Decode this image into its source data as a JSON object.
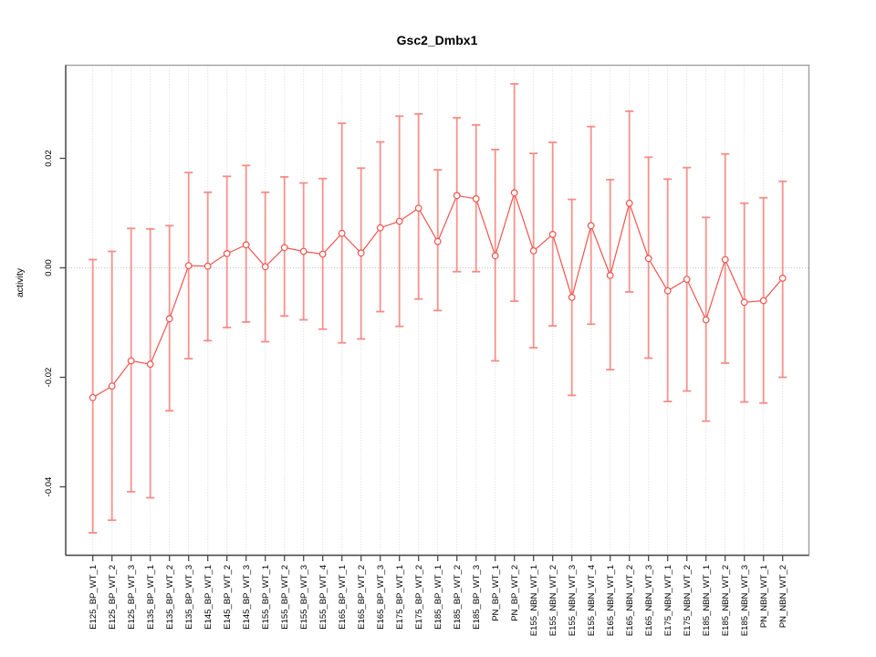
{
  "figure": {
    "title": "Gsc2_Dmbx1",
    "ylabel": "activity"
  },
  "colors": {
    "errorbar": "#f6827c",
    "line": "#ee544e",
    "point_fill": "#ffffff",
    "grid": "#d4d4d4",
    "zero_line": "#c4c4c4",
    "box": "#9e9e9e",
    "axis": "#4a4a4a",
    "text": "#000000",
    "background": "#ffffff"
  },
  "chart_data": {
    "type": "line",
    "subtype": "points-with-error-bars",
    "title": "Gsc2_Dmbx1",
    "xlabel": "",
    "ylabel": "activity",
    "ylim": [
      -0.0525,
      0.037
    ],
    "yticks": [
      {
        "label": "0.02",
        "value": 0.02
      },
      {
        "label": "0.00",
        "value": 0.0
      },
      {
        "label": "-0.02",
        "value": -0.02
      },
      {
        "label": "-0.04",
        "value": -0.04
      }
    ],
    "grid": "vertical dotted gridline at every category; dotted horizontal line at y=0",
    "legend_position": "none",
    "x_tick_label_rotation": 90,
    "categories": [
      "E125_BP_WT_1",
      "E125_BP_WT_2",
      "E125_BP_WT_3",
      "E135_BP_WT_1",
      "E135_BP_WT_2",
      "E135_BP_WT_3",
      "E145_BP_WT_1",
      "E145_BP_WT_2",
      "E145_BP_WT_3",
      "E155_BP_WT_1",
      "E155_BP_WT_2",
      "E155_BP_WT_3",
      "E155_BP_WT_4",
      "E165_BP_WT_1",
      "E165_BP_WT_2",
      "E165_BP_WT_3",
      "E175_BP_WT_1",
      "E175_BP_WT_2",
      "E185_BP_WT_1",
      "E185_BP_WT_2",
      "E185_BP_WT_3",
      "PN_BP_WT_1",
      "PN_BP_WT_2",
      "E155_NBN_WT_1",
      "E155_NBN_WT_2",
      "E155_NBN_WT_3",
      "E155_NBN_WT_4",
      "E165_NBN_WT_1",
      "E165_NBN_WT_2",
      "E165_NBN_WT_3",
      "E175_NBN_WT_1",
      "E175_NBN_WT_2",
      "E185_NBN_WT_1",
      "E185_NBN_WT_2",
      "E185_NBN_WT_3",
      "PN_NBN_WT_1",
      "PN_NBN_WT_2"
    ],
    "series": [
      {
        "name": "activity",
        "values": [
          -0.0237,
          -0.0216,
          -0.017,
          -0.0176,
          -0.0093,
          0.0004,
          0.0003,
          0.0026,
          0.0042,
          0.0002,
          0.0037,
          0.003,
          0.0025,
          0.0063,
          0.0027,
          0.0073,
          0.0085,
          0.0109,
          0.0048,
          0.0132,
          0.0126,
          0.0022,
          0.0137,
          0.0031,
          0.0061,
          -0.0054,
          0.0077,
          -0.0014,
          0.0118,
          0.0017,
          -0.0042,
          -0.0021,
          -0.0095,
          0.0015,
          -0.0063,
          -0.006,
          -0.0019
        ],
        "lower": [
          -0.0484,
          -0.0461,
          -0.0409,
          -0.042,
          -0.0261,
          -0.0166,
          -0.0133,
          -0.0109,
          -0.0099,
          -0.0135,
          -0.0088,
          -0.0095,
          -0.0112,
          -0.0137,
          -0.013,
          -0.008,
          -0.0107,
          -0.0057,
          -0.0078,
          -0.0007,
          -0.0007,
          -0.017,
          -0.0061,
          -0.0146,
          -0.0106,
          -0.0233,
          -0.0103,
          -0.0186,
          -0.0044,
          -0.0165,
          -0.0244,
          -0.0225,
          -0.028,
          -0.0174,
          -0.0245,
          -0.0247,
          -0.02
        ],
        "upper": [
          0.0015,
          0.003,
          0.0072,
          0.0071,
          0.0077,
          0.0174,
          0.0138,
          0.0167,
          0.0187,
          0.0138,
          0.0166,
          0.0155,
          0.0163,
          0.0264,
          0.0182,
          0.023,
          0.0277,
          0.0281,
          0.0179,
          0.0274,
          0.0261,
          0.0216,
          0.0336,
          0.0209,
          0.0229,
          0.0125,
          0.0258,
          0.0161,
          0.0286,
          0.0202,
          0.0162,
          0.0183,
          0.0092,
          0.0208,
          0.0118,
          0.0128,
          0.0158
        ]
      }
    ]
  }
}
